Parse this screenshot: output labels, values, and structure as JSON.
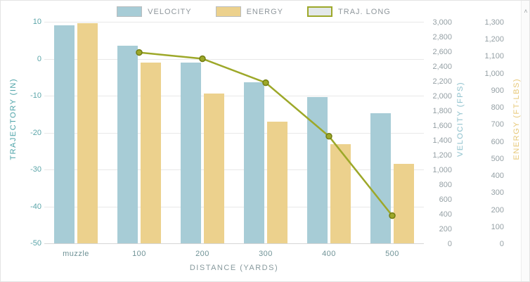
{
  "legend": [
    {
      "label": "VELOCITY",
      "color": "#a7ccd6",
      "border": "#b9bdbf"
    },
    {
      "label": "ENERGY",
      "color": "#ecd18d",
      "border": "#b9bdbf"
    },
    {
      "label": "TRAJ. LONG",
      "color": "#e3e8e9",
      "border": "#9da829"
    }
  ],
  "icons": {
    "scroll_up_arrow": "˄"
  },
  "chart_data": {
    "type": "bar",
    "subtype": "grouped bars with overlay line",
    "categories": [
      "muzzle",
      "100",
      "200",
      "300",
      "400",
      "500"
    ],
    "series": [
      {
        "name": "VELOCITY",
        "type": "bar",
        "axis": "velocity",
        "color": "#a7ccd6",
        "values": [
          2950,
          2680,
          2450,
          2180,
          1980,
          1760
        ]
      },
      {
        "name": "ENERGY",
        "type": "bar",
        "axis": "energy",
        "color": "#ecd18d",
        "values": [
          1290,
          1060,
          880,
          715,
          580,
          465
        ]
      },
      {
        "name": "TRAJ. LONG",
        "type": "line",
        "axis": "trajectory",
        "color": "#9da829",
        "marker_stroke": "#727d12",
        "values": [
          null,
          1.7,
          0,
          -6.5,
          -21,
          -42.5
        ]
      }
    ],
    "axes": {
      "trajectory": {
        "title": "TRAJECTORY (IN)",
        "min": -50,
        "max": 10,
        "ticks": [
          "10",
          "0",
          "-10",
          "-20",
          "-30",
          "-40",
          "-50"
        ]
      },
      "velocity": {
        "title": "VELOCITY (FPS)",
        "min": 0,
        "max": 3000,
        "ticks": [
          "3,000",
          "2,800",
          "2,600",
          "2,400",
          "2,200",
          "2,000",
          "1,800",
          "1,600",
          "1,400",
          "1,200",
          "1,000",
          "800",
          "600",
          "400",
          "200",
          "0"
        ]
      },
      "energy": {
        "title": "ENERGY (FT-LBS)",
        "min": 0,
        "max": 1300,
        "ticks": [
          "1,300",
          "1,200",
          "1,100",
          "1,000",
          "900",
          "800",
          "700",
          "600",
          "500",
          "400",
          "300",
          "200",
          "100",
          "0"
        ]
      },
      "x": {
        "title": "DISTANCE (YARDS)"
      }
    },
    "grid": true,
    "legend_position": "top"
  }
}
